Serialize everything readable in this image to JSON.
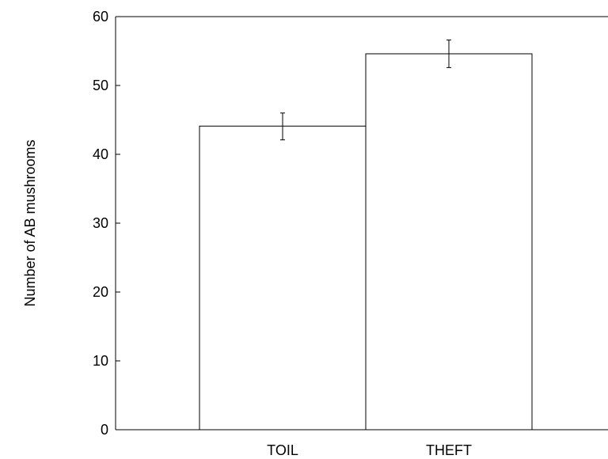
{
  "chart_data": {
    "type": "bar",
    "categories": [
      "TOIL",
      "THEFT"
    ],
    "values": [
      44.1,
      54.6
    ],
    "error_low": [
      42.1,
      52.6
    ],
    "error_high": [
      46.0,
      56.6
    ],
    "ylabel": "Number of AB mushrooms",
    "xlabel": "",
    "title": "",
    "ylim": [
      0,
      60
    ],
    "yticks": [
      "0",
      "10",
      "20",
      "30",
      "40",
      "50",
      "60"
    ],
    "grid": false,
    "legend": "none",
    "colors": {
      "bar_fill": "#ffffff",
      "bar_stroke": "#000000",
      "axis": "#000000"
    }
  }
}
